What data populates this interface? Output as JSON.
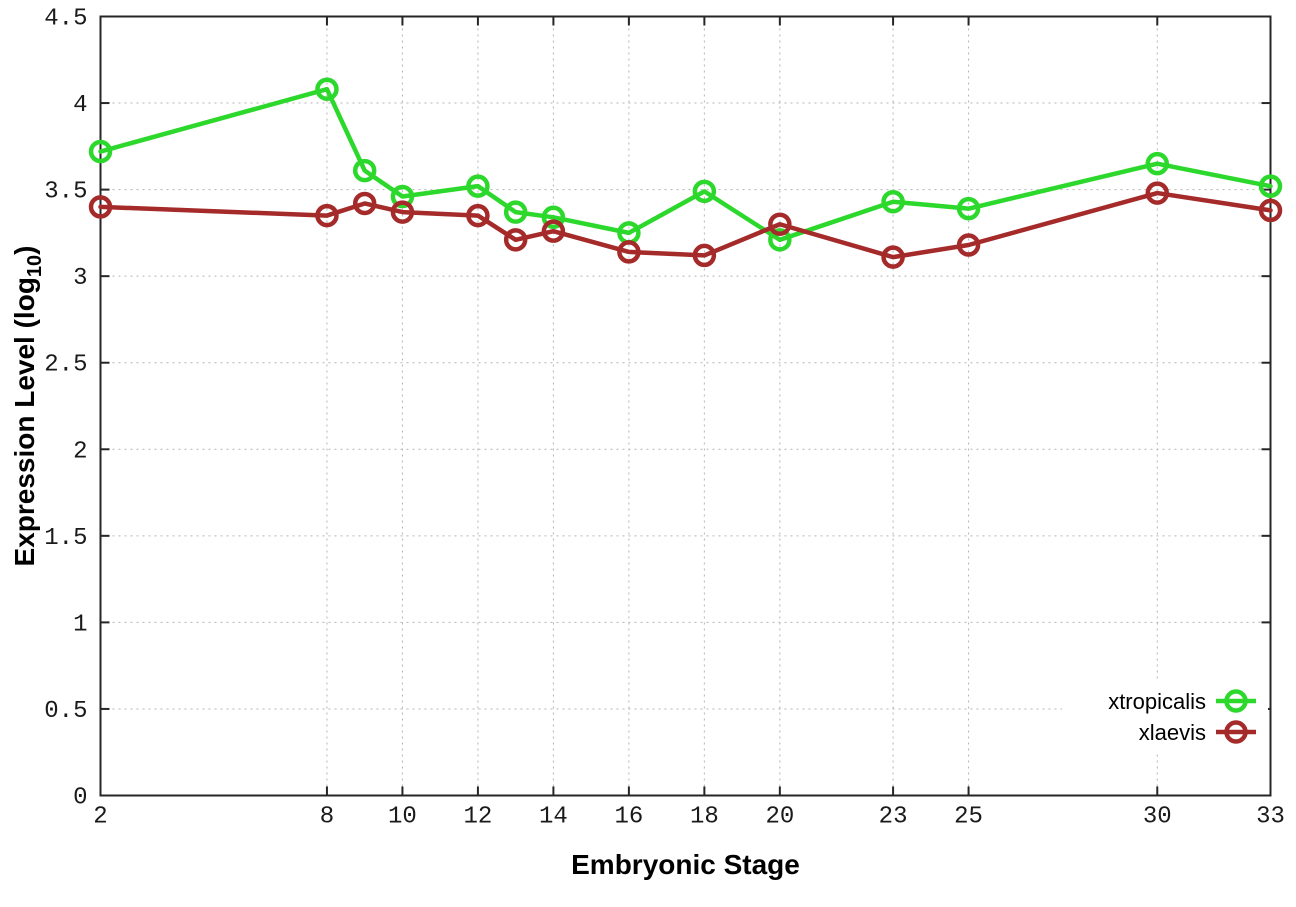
{
  "chart_data": {
    "type": "line",
    "title": "",
    "xlabel": "Embryonic Stage",
    "ylabel": "Expression Level (log10)",
    "ylabel_parts": {
      "main": "Expression Level (log",
      "sub": "10",
      "close": ")"
    },
    "xlim": [
      2,
      33
    ],
    "ylim": [
      0,
      4.5
    ],
    "x_ticks": [
      2,
      8,
      10,
      12,
      14,
      16,
      18,
      20,
      23,
      25,
      30,
      33
    ],
    "y_ticks": [
      0,
      0.5,
      1,
      1.5,
      2,
      2.5,
      3,
      3.5,
      4,
      4.5
    ],
    "y_tick_labels": [
      "0",
      "0.5",
      "1",
      "1.5",
      "2",
      "2.5",
      "3",
      "3.5",
      "4",
      "4.5"
    ],
    "grid": true,
    "legend_position": "bottom-right",
    "marker": "open-circle",
    "categories": [
      2,
      8,
      9,
      10,
      12,
      13,
      14,
      16,
      18,
      20,
      23,
      25,
      30,
      33
    ],
    "series": [
      {
        "name": "xtropicalis",
        "color": "#2cd82c",
        "x": [
          2,
          8,
          9,
          10,
          12,
          13,
          14,
          16,
          18,
          20,
          23,
          25,
          30,
          33
        ],
        "values": [
          3.72,
          4.08,
          3.61,
          3.46,
          3.52,
          3.37,
          3.34,
          3.25,
          3.49,
          3.21,
          3.43,
          3.39,
          3.65,
          3.52
        ]
      },
      {
        "name": "xlaevis",
        "color": "#a52a2a",
        "x": [
          2,
          8,
          9,
          10,
          12,
          13,
          14,
          16,
          18,
          20,
          23,
          25,
          30,
          33
        ],
        "values": [
          3.4,
          3.35,
          3.42,
          3.37,
          3.35,
          3.21,
          3.26,
          3.14,
          3.12,
          3.3,
          3.11,
          3.18,
          3.48,
          3.38
        ]
      }
    ],
    "colors": {
      "grid": "#b4b4b4",
      "axis": "#262626",
      "text": "#000000",
      "background": "#ffffff"
    }
  }
}
